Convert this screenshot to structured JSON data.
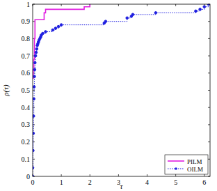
{
  "chart_data": {
    "type": "step",
    "x_label": "τ",
    "y_label": "ρ(τ)",
    "xlim": [
      0,
      6.2
    ],
    "ylim": [
      0,
      1
    ],
    "xticks": [
      0,
      1,
      2,
      3,
      4,
      5,
      6
    ],
    "yticks": [
      0,
      0.1,
      0.2,
      0.3,
      0.4,
      0.5,
      0.6,
      0.7,
      0.8,
      0.9,
      1
    ],
    "grid": false,
    "legend": "bottom-right",
    "series": [
      {
        "name": "PILM",
        "color": "#e01ee0",
        "line_style": "solid",
        "marker": "none",
        "x": [
          0,
          0.02,
          0.04,
          0.06,
          0.08,
          0.4,
          0.45,
          1.8,
          2.0
        ],
        "values": [
          0.57,
          0.62,
          0.68,
          0.8,
          0.91,
          0.95,
          0.97,
          0.985,
          1.0
        ]
      },
      {
        "name": "OILM",
        "color": "#1f1fe0",
        "line_style": "dotted",
        "marker": "circle",
        "x": [
          0,
          0,
          0.01,
          0.02,
          0.03,
          0.04,
          0.05,
          0.06,
          0.07,
          0.08,
          0.1,
          0.12,
          0.14,
          0.16,
          0.18,
          0.2,
          0.22,
          0.25,
          0.28,
          0.3,
          0.35,
          0.45,
          0.7,
          0.8,
          0.9,
          1.0,
          2.5,
          2.55,
          3.3,
          3.45,
          3.5,
          4.3,
          5.7,
          5.85,
          6.0,
          6.15
        ],
        "values": [
          0,
          0.05,
          0.15,
          0.25,
          0.35,
          0.45,
          0.52,
          0.58,
          0.62,
          0.66,
          0.7,
          0.72,
          0.74,
          0.76,
          0.77,
          0.78,
          0.79,
          0.8,
          0.81,
          0.82,
          0.83,
          0.84,
          0.85,
          0.86,
          0.87,
          0.88,
          0.89,
          0.9,
          0.92,
          0.93,
          0.94,
          0.95,
          0.96,
          0.97,
          0.985,
          1.0
        ]
      }
    ]
  }
}
